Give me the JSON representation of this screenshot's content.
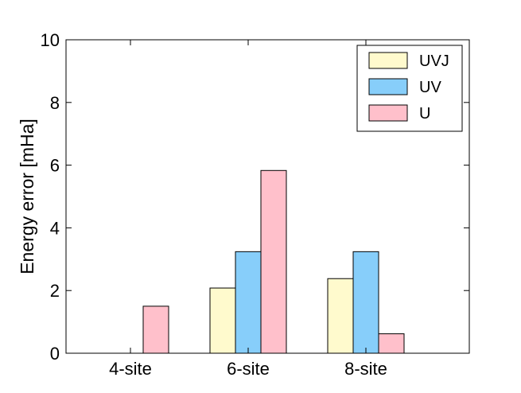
{
  "chart_data": {
    "type": "bar",
    "categories": [
      "4-site",
      "6-site",
      "8-site"
    ],
    "series": [
      {
        "name": "UVJ",
        "color": "#fffacd",
        "values": [
          0,
          2.08,
          2.38
        ]
      },
      {
        "name": "UV",
        "color": "#87cefa",
        "values": [
          0,
          3.24,
          3.24
        ]
      },
      {
        "name": "U",
        "color": "#ffc0cb",
        "values": [
          1.5,
          5.83,
          0.62
        ]
      }
    ],
    "ylabel": "Energy error [mHa]",
    "xlabel": "",
    "ylim": [
      0,
      10
    ],
    "yticks": [
      0,
      2,
      4,
      6,
      8,
      10
    ],
    "legend_position": "top-right",
    "grid": false
  }
}
